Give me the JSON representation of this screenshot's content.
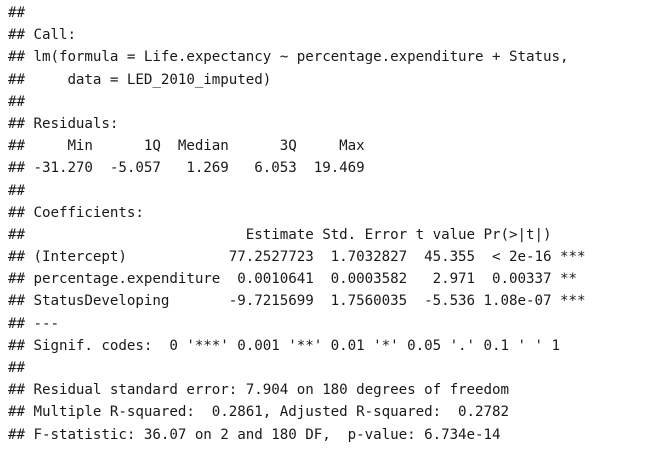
{
  "output": {
    "lines": [
      "##",
      "## Call:",
      "## lm(formula = Life.expectancy ~ percentage.expenditure + Status,",
      "##     data = LED_2010_imputed)",
      "##",
      "## Residuals:",
      "##     Min      1Q  Median      3Q     Max",
      "## -31.270  -5.057   1.269   6.053  19.469",
      "##",
      "## Coefficients:",
      "##                          Estimate Std. Error t value Pr(>|t|)",
      "## (Intercept)            77.2527723  1.7032827  45.355  < 2e-16 ***",
      "## percentage.expenditure  0.0010641  0.0003582   2.971  0.00337 **",
      "## StatusDeveloping       -9.7215699  1.7560035  -5.536 1.08e-07 ***",
      "## ---",
      "## Signif. codes:  0 '***' 0.001 '**' 0.01 '*' 0.05 '.' 0.1 ' ' 1",
      "##",
      "## Residual standard error: 7.904 on 180 degrees of freedom",
      "## Multiple R-squared:  0.2861, Adjusted R-squared:  0.2782",
      "## F-statistic: 36.07 on 2 and 180 DF,  p-value: 6.734e-14"
    ]
  }
}
